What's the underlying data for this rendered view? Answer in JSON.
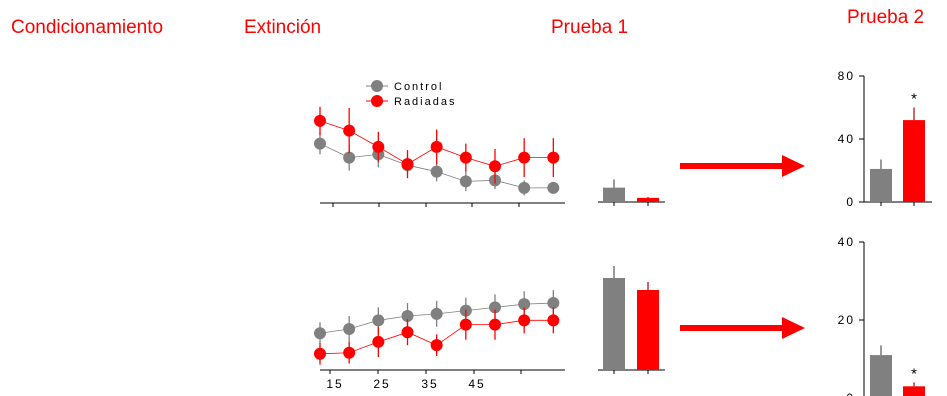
{
  "headers": {
    "condicionamiento": "Condicionamiento",
    "extincion": "Extinción",
    "prueba1": "Prueba 1",
    "prueba2": "Prueba 2"
  },
  "colors": {
    "control": "#808080",
    "radiadas": "#ff0000",
    "arrow": "#ff0000",
    "header_text": "#ff0000"
  },
  "legend": {
    "control": "Control",
    "radiadas": "Radiadas"
  },
  "chart_data": [
    {
      "type": "line",
      "x": [
        10,
        15,
        20,
        25,
        30,
        35,
        40,
        45,
        50
      ],
      "series": [
        {
          "name": "Control",
          "values": [
            55,
            42,
            45,
            35,
            29,
            20,
            21,
            14,
            14
          ],
          "err": [
            10,
            12,
            12,
            9,
            9,
            9,
            8,
            7,
            3
          ]
        },
        {
          "name": "Radiadas",
          "values": [
            76,
            67,
            52,
            36,
            52,
            42,
            34,
            42,
            42
          ],
          "err": [
            13,
            21,
            14,
            13,
            16,
            13,
            16,
            18,
            18
          ]
        }
      ],
      "ylim": [
        0,
        100
      ],
      "xlim": [
        10,
        52
      ]
    },
    {
      "type": "bar",
      "categories": [
        "Control",
        "Radiadas"
      ],
      "values": [
        7,
        2
      ],
      "err": [
        4,
        0.5
      ],
      "ylim": [
        0,
        40
      ]
    },
    {
      "type": "bar",
      "categories": [
        "Control",
        "Radiadas"
      ],
      "values": [
        21,
        52
      ],
      "err": [
        6,
        8
      ],
      "yticks": [
        "0",
        "40",
        "80"
      ],
      "ylim": [
        0,
        80
      ],
      "annotations": [
        "",
        "*"
      ]
    },
    {
      "type": "line",
      "x": [
        10,
        15,
        20,
        25,
        30,
        35,
        40,
        45,
        50
      ],
      "series": [
        {
          "name": "Control",
          "values": [
            34,
            38,
            46,
            50,
            52,
            55,
            58,
            61,
            62
          ],
          "err": [
            10,
            12,
            12,
            12,
            12,
            12,
            12,
            12,
            12
          ]
        },
        {
          "name": "Radiadas",
          "values": [
            15,
            16,
            26,
            35,
            23,
            42,
            42,
            46,
            46
          ],
          "err": [
            10,
            10,
            14,
            12,
            10,
            14,
            14,
            12,
            12
          ]
        }
      ],
      "xticks": [
        "15",
        "25",
        "35",
        "45"
      ],
      "ylim": [
        0,
        100
      ],
      "xlim": [
        10,
        52
      ]
    },
    {
      "type": "bar",
      "categories": [
        "Control",
        "Radiadas"
      ],
      "values": [
        23,
        20
      ],
      "err": [
        3,
        2
      ],
      "ylim": [
        0,
        30
      ]
    },
    {
      "type": "bar",
      "categories": [
        "Control",
        "Radiadas"
      ],
      "values": [
        11,
        3
      ],
      "err": [
        2.5,
        1
      ],
      "yticks": [
        "0",
        "20",
        "40"
      ],
      "ylim": [
        0,
        40
      ],
      "annotations": [
        "",
        "*"
      ]
    }
  ]
}
